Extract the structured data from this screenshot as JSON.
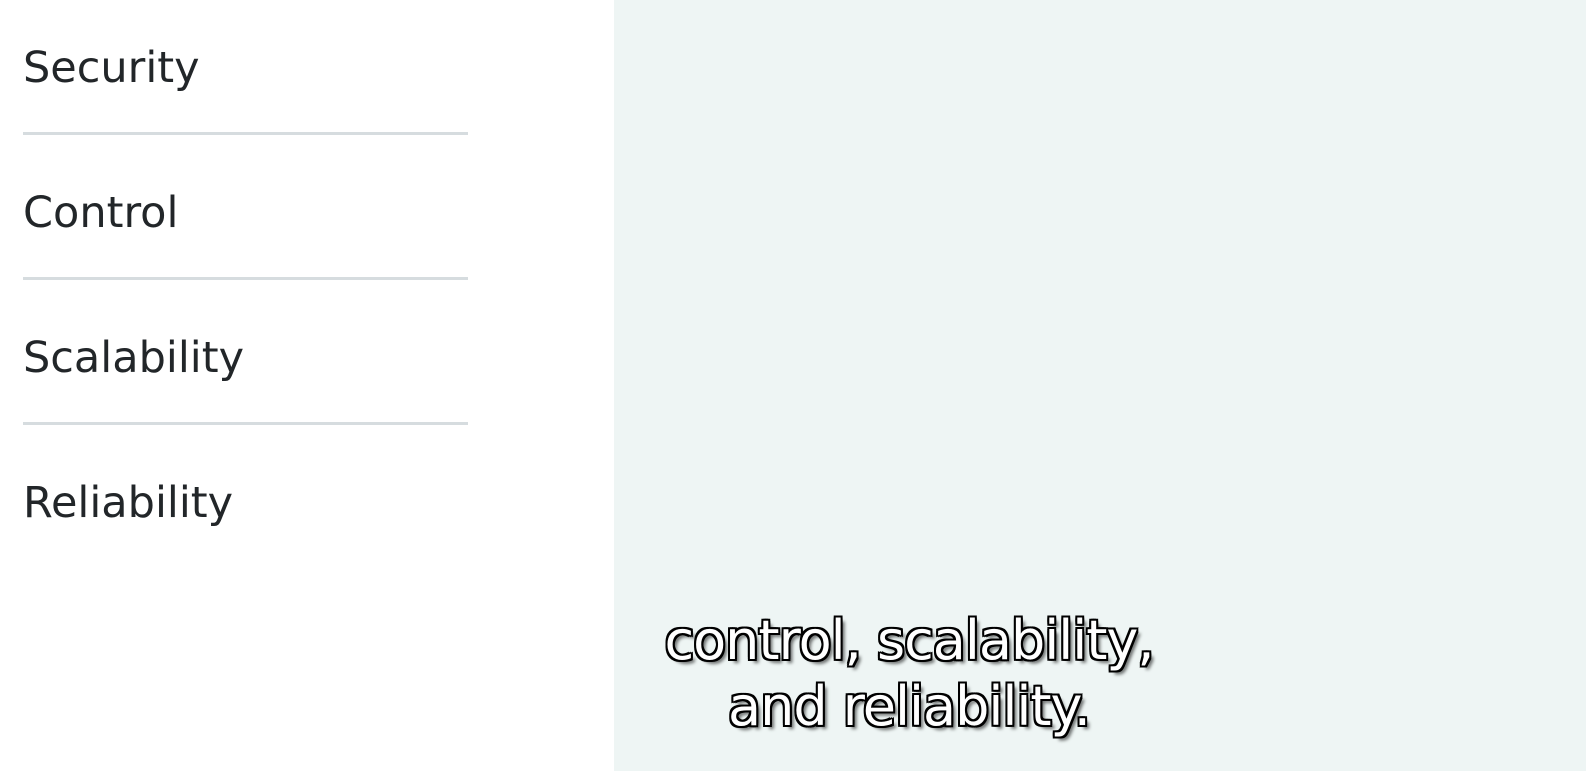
{
  "feature_list": {
    "items": [
      {
        "label": "Security"
      },
      {
        "label": "Control"
      },
      {
        "label": "Scalability"
      },
      {
        "label": "Reliability"
      }
    ]
  },
  "subtitle": {
    "line1": "control, scalability,",
    "line2": "and reliability."
  },
  "colors": {
    "left_background": "#ffffff",
    "right_background": "#eef5f4",
    "text": "#222629",
    "divider": "#d6dcdf",
    "subtitle_fill": "#ffffff",
    "subtitle_outline": "#000000"
  }
}
